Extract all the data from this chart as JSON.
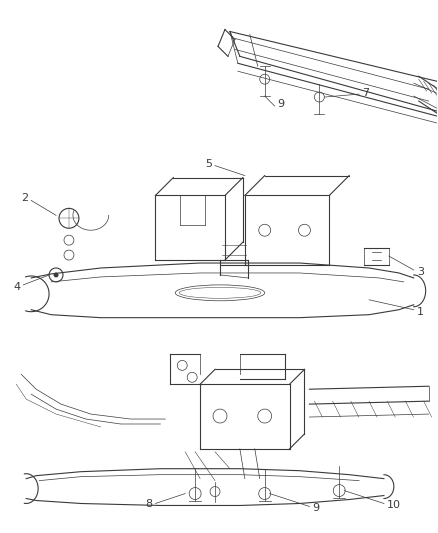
{
  "background_color": "#ffffff",
  "line_color": "#3a3a3a",
  "label_color": "#3a3a3a",
  "fig_width": 4.38,
  "fig_height": 5.33,
  "dpi": 100
}
